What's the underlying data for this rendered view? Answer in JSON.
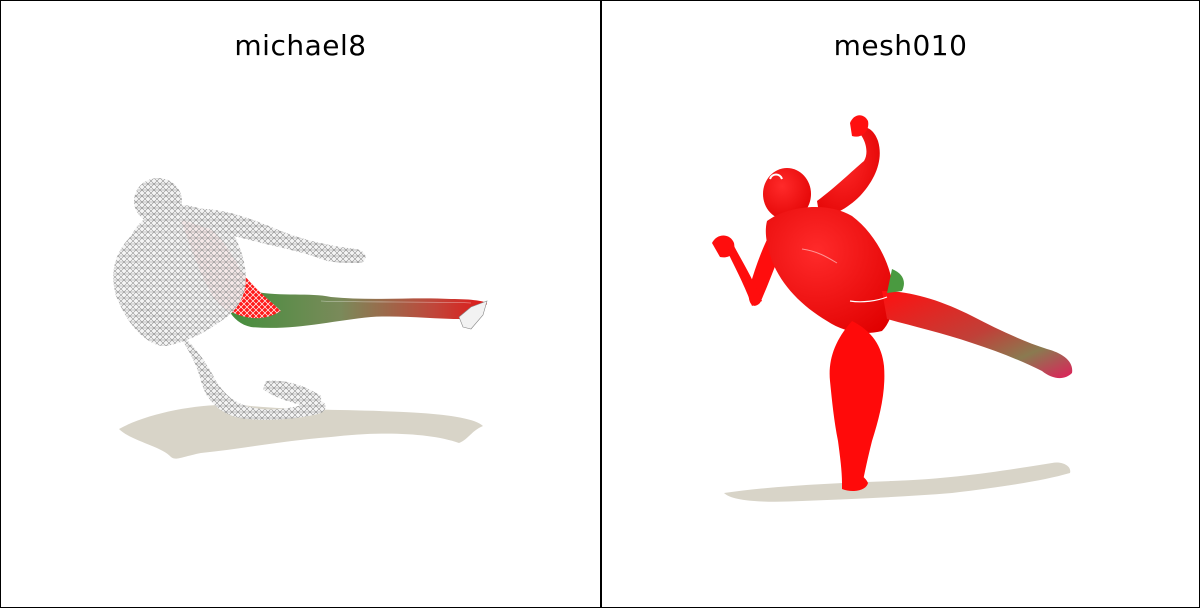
{
  "panels": [
    {
      "title": "michael8",
      "render_style": "wireframe",
      "pose": "flying side kick"
    },
    {
      "title": "mesh010",
      "render_style": "solid",
      "pose": "leaning kick with raised fists"
    }
  ],
  "colors": {
    "background": "#ffffff",
    "border": "#000000",
    "mesh_red": "#ff0000",
    "mesh_green": "#3a8a3a",
    "wireframe": "#9a9a9a",
    "shadow": "#d8d4c8"
  }
}
